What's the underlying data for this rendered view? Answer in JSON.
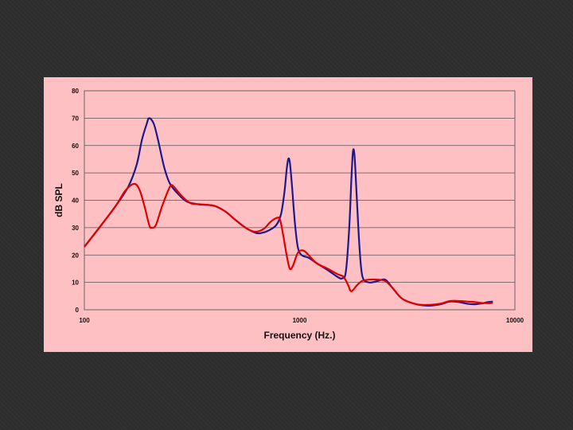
{
  "chart_data": {
    "type": "line",
    "xlabel": "Frequency (Hz.)",
    "ylabel": "dB SPL",
    "x_scale": "log",
    "xlim": [
      100,
      10000
    ],
    "ylim": [
      0,
      80
    ],
    "x_ticks": [
      100,
      1000,
      10000
    ],
    "x_tick_labels": [
      "100",
      "1000",
      "10000"
    ],
    "y_ticks": [
      0,
      10,
      20,
      30,
      40,
      50,
      60,
      70,
      80
    ],
    "y_tick_labels": [
      "0",
      "10",
      "20",
      "30",
      "40",
      "50",
      "60",
      "70",
      "80"
    ],
    "grid": true,
    "background_color": "#ffc0c4",
    "series": [
      {
        "color": "#1a1a8c",
        "points": [
          [
            100,
            23
          ],
          [
            120,
            31
          ],
          [
            140,
            38
          ],
          [
            160,
            45
          ],
          [
            175,
            53
          ],
          [
            185,
            62
          ],
          [
            195,
            68
          ],
          [
            200,
            70
          ],
          [
            210,
            68
          ],
          [
            220,
            62
          ],
          [
            235,
            52
          ],
          [
            250,
            46
          ],
          [
            275,
            42
          ],
          [
            300,
            39.5
          ],
          [
            340,
            38.5
          ],
          [
            400,
            38
          ],
          [
            450,
            36
          ],
          [
            500,
            33
          ],
          [
            560,
            30
          ],
          [
            620,
            28.2
          ],
          [
            660,
            28
          ],
          [
            720,
            29
          ],
          [
            780,
            31
          ],
          [
            820,
            35
          ],
          [
            850,
            43
          ],
          [
            870,
            51
          ],
          [
            885,
            55
          ],
          [
            900,
            54
          ],
          [
            920,
            46
          ],
          [
            950,
            32
          ],
          [
            980,
            23
          ],
          [
            1020,
            20
          ],
          [
            1100,
            19
          ],
          [
            1200,
            17
          ],
          [
            1350,
            14.5
          ],
          [
            1500,
            12
          ],
          [
            1580,
            11.5
          ],
          [
            1640,
            14
          ],
          [
            1700,
            30
          ],
          [
            1740,
            48
          ],
          [
            1770,
            58
          ],
          [
            1800,
            56
          ],
          [
            1840,
            42
          ],
          [
            1900,
            22
          ],
          [
            1960,
            12
          ],
          [
            2100,
            10
          ],
          [
            2300,
            10.5
          ],
          [
            2500,
            11
          ],
          [
            2700,
            8
          ],
          [
            3000,
            4
          ],
          [
            3500,
            2
          ],
          [
            4000,
            1.5
          ],
          [
            4500,
            2
          ],
          [
            5000,
            3
          ],
          [
            5500,
            2.8
          ],
          [
            6000,
            2.2
          ],
          [
            6500,
            2.0
          ],
          [
            7000,
            2.3
          ],
          [
            7500,
            2.8
          ],
          [
            7900,
            3
          ]
        ]
      },
      {
        "color": "#e00000",
        "points": [
          [
            100,
            23
          ],
          [
            120,
            31
          ],
          [
            140,
            38
          ],
          [
            155,
            43.5
          ],
          [
            170,
            46
          ],
          [
            180,
            44
          ],
          [
            190,
            38
          ],
          [
            200,
            31
          ],
          [
            205,
            30
          ],
          [
            215,
            31
          ],
          [
            230,
            38
          ],
          [
            250,
            45
          ],
          [
            260,
            45
          ],
          [
            280,
            42
          ],
          [
            310,
            39
          ],
          [
            350,
            38.5
          ],
          [
            400,
            38
          ],
          [
            450,
            36
          ],
          [
            500,
            33
          ],
          [
            560,
            30
          ],
          [
            620,
            28.5
          ],
          [
            680,
            29.5
          ],
          [
            730,
            32
          ],
          [
            780,
            33.5
          ],
          [
            810,
            33
          ],
          [
            840,
            27
          ],
          [
            870,
            20
          ],
          [
            900,
            15
          ],
          [
            930,
            16
          ],
          [
            970,
            20
          ],
          [
            1000,
            21.5
          ],
          [
            1050,
            21.5
          ],
          [
            1100,
            20
          ],
          [
            1200,
            17
          ],
          [
            1350,
            15
          ],
          [
            1500,
            13
          ],
          [
            1600,
            12
          ],
          [
            1680,
            9
          ],
          [
            1720,
            7
          ],
          [
            1760,
            7
          ],
          [
            1850,
            9
          ],
          [
            1950,
            10.5
          ],
          [
            2100,
            11
          ],
          [
            2300,
            11
          ],
          [
            2500,
            10.5
          ],
          [
            2700,
            8
          ],
          [
            3000,
            4
          ],
          [
            3500,
            2
          ],
          [
            4000,
            1.8
          ],
          [
            4500,
            2.2
          ],
          [
            5000,
            3.2
          ],
          [
            5500,
            3.2
          ],
          [
            6000,
            3.0
          ],
          [
            6500,
            2.8
          ],
          [
            7000,
            2.5
          ],
          [
            7500,
            2.4
          ],
          [
            7900,
            2.5
          ]
        ]
      }
    ]
  }
}
